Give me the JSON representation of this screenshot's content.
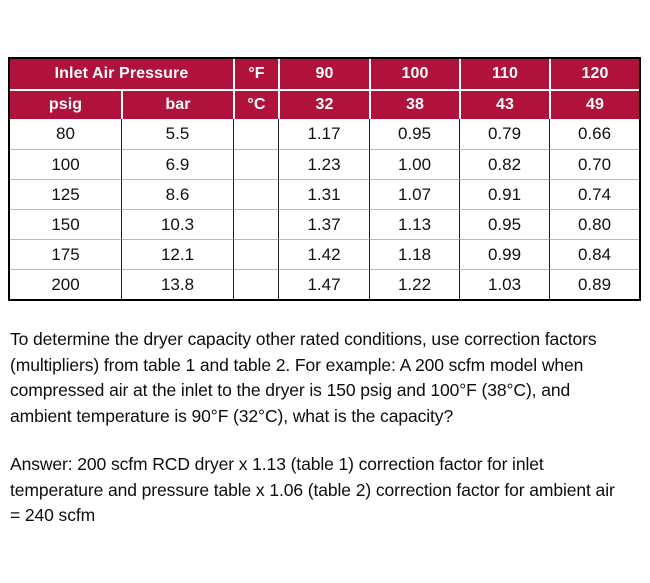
{
  "colors": {
    "header_bg": "#b0123c"
  },
  "table": {
    "header": {
      "title": "Inlet Air Pressure",
      "fahrenheit_label": "°F",
      "celsius_label": "°C",
      "psig_label": "psig",
      "bar_label": "bar",
      "temps_f": [
        "90",
        "100",
        "110",
        "120"
      ],
      "temps_c": [
        "32",
        "38",
        "43",
        "49"
      ]
    },
    "rows": [
      [
        "80",
        "5.5",
        "",
        "1.17",
        "0.95",
        "0.79",
        "0.66"
      ],
      [
        "100",
        "6.9",
        "",
        "1.23",
        "1.00",
        "0.82",
        "0.70"
      ],
      [
        "125",
        "8.6",
        "",
        "1.31",
        "1.07",
        "0.91",
        "0.74"
      ],
      [
        "150",
        "10.3",
        "",
        "1.37",
        "1.13",
        "0.95",
        "0.80"
      ],
      [
        "175",
        "12.1",
        "",
        "1.42",
        "1.18",
        "0.99",
        "0.84"
      ],
      [
        "200",
        "13.8",
        "",
        "1.47",
        "1.22",
        "1.03",
        "0.89"
      ]
    ]
  },
  "example_paragraph": {
    "lines": [
      "To determine the dryer capacity other rated conditions, use correction factors",
      "(multipliers) from table 1 and table 2. For example: A 200 scfm model when",
      "compressed air at the inlet to the dryer is 150 psig and 100°F (38°C), and",
      "ambient temperature is 90°F (32°C), what is the capacity?"
    ]
  },
  "answer_paragraph": {
    "lines": [
      "Answer: 200 scfm RCD dryer x 1.13 (table 1) correction factor for inlet",
      "temperature and pressure table x 1.06 (table 2) correction factor for ambient air",
      "= 240 scfm"
    ]
  }
}
